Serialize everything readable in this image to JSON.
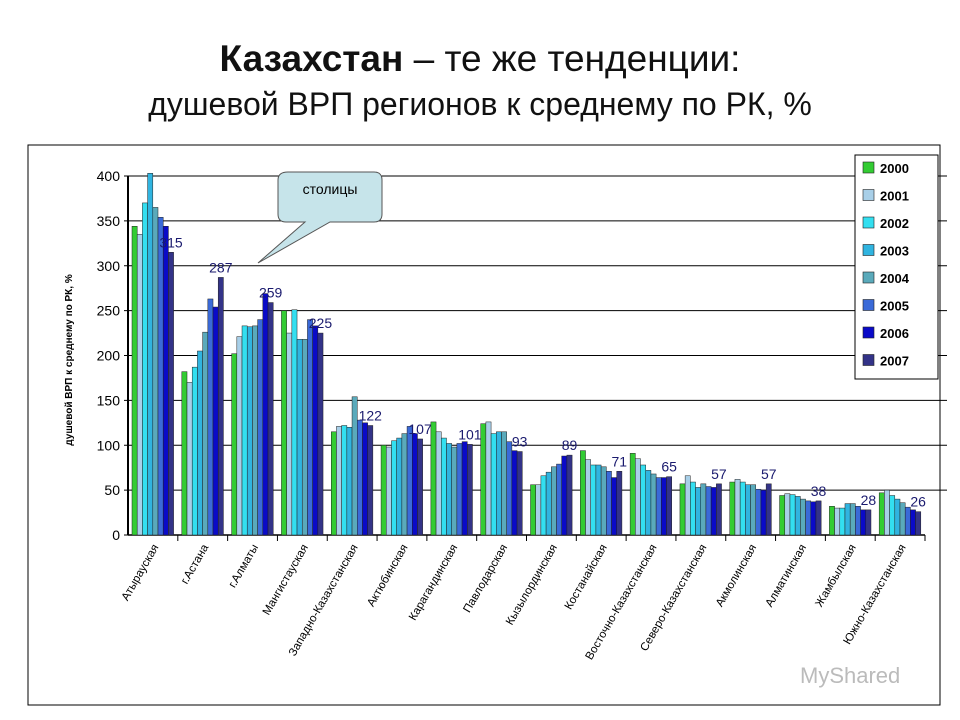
{
  "title": {
    "bold": "Казахстан",
    "rest": " – те же тенденции:",
    "subtitle": "душевой ВРП регионов к среднему по РК, %"
  },
  "callout": "столицы",
  "watermark": "MyShared",
  "chart_data": {
    "type": "bar",
    "ylabel": "душевой ВРП к среднему по РК, %",
    "ylim": [
      0,
      400
    ],
    "yticks": [
      0,
      50,
      100,
      150,
      200,
      250,
      300,
      350,
      400
    ],
    "grid": true,
    "legend_position": "right",
    "categories": [
      "Атырауская",
      "г.Астана",
      "г.Алматы",
      "Мангистауская",
      "Западно-Казахстанская",
      "Актюбинская",
      "Карагандинская",
      "Павлодарская",
      "Кызылординская",
      "Костанайская",
      "Восточно-Казахстанская",
      "Северо-Казахстанская",
      "Акмолинская",
      "Алматинская",
      "Жамбылская",
      "Южно-Казахстанская"
    ],
    "data_labels": [
      "315",
      "287",
      "259",
      "225",
      "122",
      "107",
      "101",
      "93",
      "89",
      "71",
      "65",
      "57",
      "57",
      "38",
      "28",
      "26"
    ],
    "series": [
      {
        "name": "2000",
        "color": "#33cc33",
        "values": [
          344,
          182,
          202,
          250,
          115,
          100,
          126,
          124,
          56,
          94,
          91,
          57,
          59,
          44,
          32,
          47
        ]
      },
      {
        "name": "2001",
        "color": "#a8cfe8",
        "values": [
          335,
          170,
          221,
          225,
          121,
          98,
          115,
          126,
          56,
          84,
          85,
          66,
          62,
          46,
          30,
          50
        ]
      },
      {
        "name": "2002",
        "color": "#33dff0",
        "values": [
          370,
          187,
          233,
          251,
          122,
          105,
          108,
          113,
          66,
          78,
          78,
          59,
          59,
          45,
          30,
          44
        ]
      },
      {
        "name": "2003",
        "color": "#30b4e0",
        "values": [
          403,
          205,
          232,
          218,
          120,
          108,
          102,
          115,
          70,
          78,
          72,
          53,
          56,
          43,
          35,
          40
        ]
      },
      {
        "name": "2004",
        "color": "#5aaabb",
        "values": [
          365,
          226,
          233,
          218,
          154,
          113,
          98,
          115,
          76,
          76,
          68,
          57,
          56,
          40,
          35,
          36
        ]
      },
      {
        "name": "2005",
        "color": "#3a6ad8",
        "values": [
          354,
          263,
          240,
          240,
          128,
          121,
          102,
          104,
          79,
          71,
          64,
          54,
          51,
          38,
          32,
          31
        ]
      },
      {
        "name": "2006",
        "color": "#0a0ac8",
        "values": [
          344,
          254,
          269,
          233,
          125,
          113,
          104,
          94,
          88,
          64,
          64,
          53,
          50,
          37,
          28,
          28
        ]
      },
      {
        "name": "2007",
        "color": "#333388",
        "values": [
          315,
          287,
          259,
          225,
          122,
          107,
          101,
          93,
          89,
          71,
          65,
          57,
          57,
          38,
          28,
          26
        ]
      }
    ]
  }
}
